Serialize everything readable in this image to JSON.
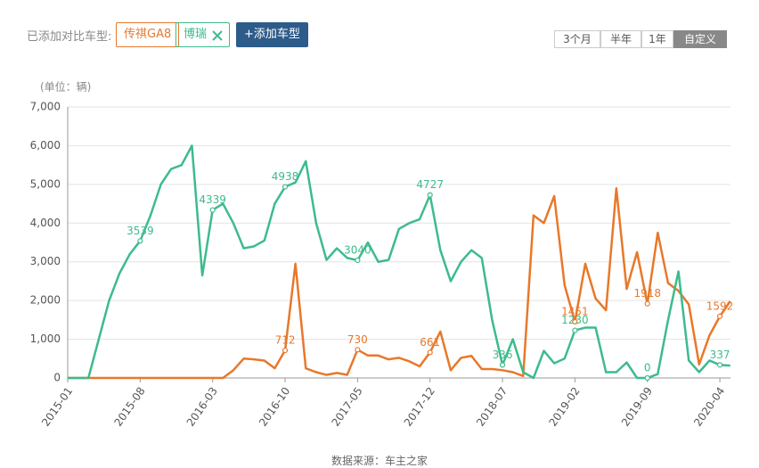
{
  "header": {
    "label": "已添加对比车型:",
    "models": [
      "传祺GA8",
      "博瑞"
    ],
    "add": "+添加车型",
    "ranges": [
      "3个月",
      "半年",
      "1年",
      "自定义"
    ],
    "active_range": "自定义"
  },
  "chart_data": {
    "type": "line",
    "unit": "(单位：辆)",
    "categories": [
      "2015-01",
      null,
      null,
      null,
      null,
      null,
      null,
      "2015-08",
      null,
      null,
      null,
      null,
      null,
      null,
      "2016-03",
      null,
      null,
      null,
      null,
      null,
      null,
      "2016-10",
      null,
      null,
      null,
      null,
      null,
      null,
      "2017-05",
      null,
      null,
      null,
      null,
      null,
      null,
      "2017-12",
      null,
      null,
      null,
      null,
      null,
      null,
      "2018-07",
      null,
      null,
      null,
      null,
      null,
      null,
      "2019-02",
      null,
      null,
      null,
      null,
      null,
      null,
      "2019-09",
      null,
      null,
      null,
      null,
      null,
      null,
      "2020-04",
      null
    ],
    "series": [
      {
        "name": "传祺GA8",
        "color": "#e8782a",
        "values": [
          0,
          0,
          0,
          0,
          0,
          0,
          0,
          0,
          0,
          0,
          0,
          0,
          0,
          0,
          0,
          0,
          200,
          500,
          480,
          450,
          250,
          712,
          2950,
          250,
          150,
          80,
          130,
          80,
          730,
          580,
          580,
          480,
          520,
          430,
          300,
          661,
          1200,
          200,
          520,
          570,
          230,
          230,
          200,
          150,
          50,
          4200,
          4000,
          4700,
          2400,
          1451,
          2950,
          2050,
          1750,
          4900,
          2300,
          3250,
          1918,
          3750,
          2450,
          2250,
          1900,
          350,
          1100,
          1592,
          1980
        ],
        "value_labels": [
          null,
          null,
          null,
          null,
          null,
          null,
          null,
          null,
          null,
          null,
          null,
          null,
          null,
          null,
          null,
          null,
          null,
          null,
          null,
          null,
          null,
          "712",
          null,
          null,
          null,
          null,
          null,
          null,
          "730",
          null,
          null,
          null,
          null,
          null,
          null,
          "661",
          null,
          null,
          null,
          null,
          null,
          null,
          null,
          null,
          null,
          null,
          null,
          null,
          null,
          "1451",
          null,
          null,
          null,
          null,
          null,
          null,
          "1918",
          null,
          null,
          null,
          null,
          null,
          null,
          "1592",
          null
        ]
      },
      {
        "name": "博瑞",
        "color": "#3dbb8c",
        "values": [
          0,
          0,
          0,
          1000,
          2000,
          2700,
          3200,
          3539,
          4200,
          5000,
          5400,
          5500,
          6000,
          2650,
          4339,
          4500,
          4000,
          3350,
          3400,
          3550,
          4500,
          4938,
          5050,
          5600,
          4000,
          3050,
          3350,
          3100,
          3040,
          3500,
          3000,
          3050,
          3850,
          4000,
          4100,
          4727,
          3300,
          2500,
          3000,
          3300,
          3100,
          1500,
          336,
          1000,
          150,
          0,
          700,
          380,
          500,
          1230,
          1300,
          1300,
          150,
          150,
          400,
          0,
          0,
          100,
          1500,
          2750,
          450,
          150,
          450,
          337,
          320
        ],
        "value_labels": [
          null,
          null,
          null,
          null,
          null,
          null,
          null,
          "3539",
          null,
          null,
          null,
          null,
          null,
          null,
          "4339",
          null,
          null,
          null,
          null,
          null,
          null,
          "4938",
          null,
          null,
          null,
          null,
          null,
          null,
          "3040",
          null,
          null,
          null,
          null,
          null,
          null,
          "4727",
          null,
          null,
          null,
          null,
          null,
          null,
          "336",
          null,
          null,
          null,
          null,
          null,
          null,
          "1230",
          null,
          null,
          null,
          null,
          null,
          null,
          "0",
          null,
          null,
          null,
          null,
          null,
          null,
          "337",
          null
        ]
      }
    ],
    "ylim": [
      0,
      7000
    ],
    "yticks": [
      0,
      {
        "value": 1000,
        "label": "1,000"
      },
      {
        "value": 2000,
        "label": "2,000"
      },
      {
        "value": 3000,
        "label": "3,000"
      },
      {
        "value": 4000,
        "label": "4,000"
      },
      {
        "value": 5000,
        "label": "5,000"
      },
      {
        "value": 6000,
        "label": "6,000"
      },
      {
        "value": 7000,
        "label": "7,000"
      }
    ],
    "grid": true,
    "source": "数据来源：车主之家"
  }
}
